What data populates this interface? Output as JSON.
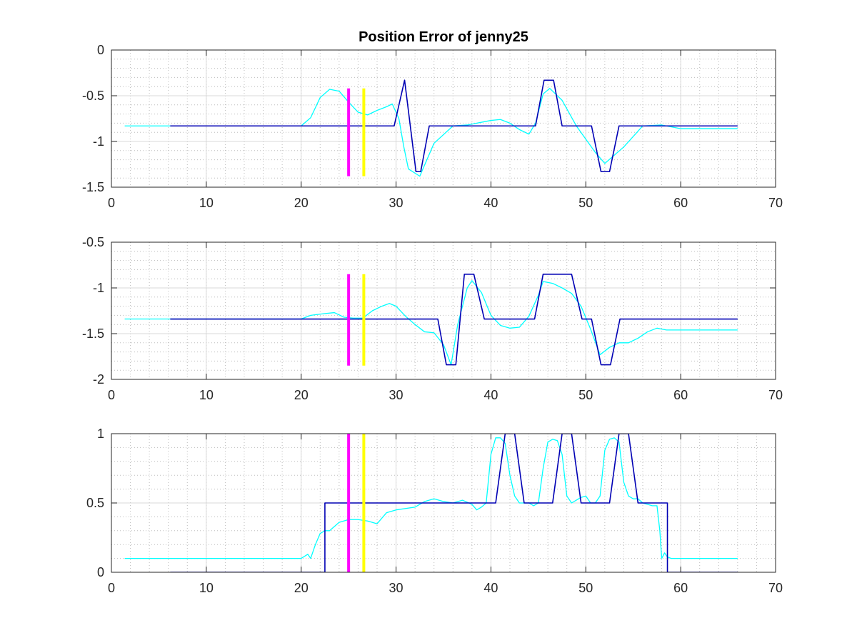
{
  "figure_title": "Position Error of jenny25",
  "colors": {
    "reference": "#0000b4",
    "measured": "#00ffff",
    "marker_1": "#ff00ff",
    "marker_2": "#ffff00",
    "axes": "#262626",
    "grid": "#d9d9d9",
    "minor_grid": "#bdbdbd"
  },
  "chart_data": [
    {
      "type": "line",
      "title": "Position Error of jenny25",
      "xlim": [
        0,
        70
      ],
      "ylim": [
        -1.5,
        0
      ],
      "x_ticks": [
        0,
        10,
        20,
        30,
        40,
        50,
        60,
        70
      ],
      "y_ticks": [
        -1.5,
        -1,
        -0.5,
        0
      ],
      "grid": "major and minor",
      "vertical_markers": [
        {
          "x": 25.0,
          "y_range": [
            -1.38,
            -0.42
          ],
          "color": "#ff00ff"
        },
        {
          "x": 26.6,
          "y_range": [
            -1.38,
            -0.42
          ],
          "color": "#ffff00"
        }
      ],
      "series": [
        {
          "color": "#0000b4",
          "x": [
            6.2,
            29.8,
            30.9,
            32.1,
            32.6,
            33.5,
            44.7,
            45.6,
            46.6,
            47.5,
            50.6,
            51.6,
            52.5,
            53.5,
            66.0
          ],
          "y": [
            -0.83,
            -0.83,
            -0.33,
            -1.33,
            -1.33,
            -0.83,
            -0.83,
            -0.33,
            -0.33,
            -0.83,
            -0.83,
            -1.33,
            -1.33,
            -0.83,
            -0.83
          ]
        },
        {
          "color": "#00ffff",
          "x": [
            1.4,
            6.0,
            20.0,
            21.0,
            22.0,
            23.0,
            24.0,
            25.0,
            26.0,
            27.0,
            28.0,
            29.0,
            29.6,
            30.3,
            30.8,
            31.3,
            32.5,
            34.0,
            36.0,
            37.5,
            40.0,
            41.0,
            42.0,
            43.0,
            44.0,
            44.7,
            45.5,
            46.2,
            47.5,
            49.0,
            51.0,
            52.0,
            54.0,
            56.0,
            58.0,
            60.0,
            66.0
          ],
          "y": [
            -0.83,
            -0.83,
            -0.83,
            -0.74,
            -0.52,
            -0.43,
            -0.45,
            -0.57,
            -0.68,
            -0.71,
            -0.66,
            -0.62,
            -0.59,
            -0.75,
            -1.05,
            -1.3,
            -1.38,
            -1.02,
            -0.83,
            -0.82,
            -0.77,
            -0.76,
            -0.8,
            -0.87,
            -0.92,
            -0.8,
            -0.48,
            -0.42,
            -0.55,
            -0.83,
            -1.12,
            -1.24,
            -1.06,
            -0.83,
            -0.82,
            -0.86,
            -0.86
          ]
        }
      ]
    },
    {
      "type": "line",
      "xlim": [
        0,
        70
      ],
      "ylim": [
        -2,
        -0.5
      ],
      "x_ticks": [
        0,
        10,
        20,
        30,
        40,
        50,
        60,
        70
      ],
      "y_ticks": [
        -2,
        -1.5,
        -1,
        -0.5
      ],
      "grid": "major and minor",
      "vertical_markers": [
        {
          "x": 25.0,
          "y_range": [
            -1.85,
            -0.85
          ],
          "color": "#ff00ff"
        },
        {
          "x": 26.6,
          "y_range": [
            -1.85,
            -0.85
          ],
          "color": "#ffff00"
        }
      ],
      "series": [
        {
          "color": "#0000b4",
          "x": [
            6.2,
            34.4,
            35.3,
            36.3,
            37.2,
            38.2,
            39.3,
            44.6,
            45.5,
            48.5,
            49.6,
            50.6,
            51.6,
            52.6,
            53.6,
            66.0
          ],
          "y": [
            -1.34,
            -1.34,
            -1.84,
            -1.84,
            -0.85,
            -0.85,
            -1.34,
            -1.34,
            -0.85,
            -0.85,
            -1.34,
            -1.34,
            -1.84,
            -1.84,
            -1.34,
            -1.34
          ]
        },
        {
          "color": "#00ffff",
          "x": [
            1.4,
            6.0,
            20.0,
            21.0,
            22.5,
            23.5,
            24.5,
            25.5,
            26.5,
            27.5,
            28.5,
            29.3,
            30.0,
            31.0,
            32.0,
            33.0,
            34.0,
            35.0,
            35.8,
            36.5,
            37.5,
            38.0,
            39.0,
            40.0,
            41.0,
            42.0,
            43.0,
            44.0,
            45.0,
            45.5,
            46.5,
            47.5,
            48.5,
            49.5,
            50.5,
            51.5,
            52.5,
            53.5,
            54.5,
            55.5,
            56.5,
            57.5,
            58.0,
            58.5,
            66.0
          ],
          "y": [
            -1.34,
            -1.34,
            -1.34,
            -1.3,
            -1.28,
            -1.27,
            -1.32,
            -1.33,
            -1.33,
            -1.25,
            -1.2,
            -1.17,
            -1.2,
            -1.31,
            -1.4,
            -1.48,
            -1.49,
            -1.62,
            -1.84,
            -1.4,
            -1.0,
            -0.92,
            -1.05,
            -1.3,
            -1.41,
            -1.44,
            -1.43,
            -1.31,
            -1.08,
            -0.93,
            -0.95,
            -1.0,
            -1.06,
            -1.2,
            -1.45,
            -1.73,
            -1.65,
            -1.6,
            -1.6,
            -1.55,
            -1.48,
            -1.44,
            -1.45,
            -1.46,
            -1.46
          ]
        }
      ]
    },
    {
      "type": "line",
      "xlim": [
        0,
        70
      ],
      "ylim": [
        0,
        1
      ],
      "x_ticks": [
        0,
        10,
        20,
        30,
        40,
        50,
        60,
        70
      ],
      "y_ticks": [
        0,
        0.5,
        1
      ],
      "grid": "major and minor",
      "vertical_markers": [
        {
          "x": 25.0,
          "y_range": [
            0,
            1
          ],
          "color": "#ff00ff"
        },
        {
          "x": 26.6,
          "y_range": [
            0,
            1
          ],
          "color": "#ffff00"
        }
      ],
      "series": [
        {
          "color": "#0000b4",
          "x": [
            6.2,
            22.5,
            22.5,
            40.5,
            41.5,
            42.5,
            43.5,
            46.5,
            47.5,
            48.5,
            49.5,
            52.5,
            53.5,
            54.5,
            55.5,
            58.6,
            58.6,
            66.0
          ],
          "y": [
            0,
            0,
            0.5,
            0.5,
            1.0,
            1.0,
            0.5,
            0.5,
            1.0,
            1.0,
            0.5,
            0.5,
            1.0,
            1.0,
            0.5,
            0.5,
            0,
            0
          ]
        },
        {
          "color": "#00ffff",
          "x": [
            1.4,
            10.0,
            20.0,
            20.7,
            21.0,
            21.5,
            22.0,
            22.5,
            23.0,
            24.0,
            25.0,
            26.0,
            27.0,
            28.0,
            29.0,
            30.0,
            31.0,
            32.0,
            33.0,
            34.0,
            35.0,
            36.0,
            37.0,
            38.0,
            38.5,
            39.0,
            39.5,
            40.0,
            40.5,
            41.0,
            41.5,
            42.0,
            42.5,
            43.0,
            43.5,
            44.0,
            44.5,
            45.0,
            45.5,
            46.0,
            46.5,
            47.0,
            47.5,
            48.0,
            48.5,
            49.0,
            49.5,
            50.0,
            50.5,
            51.0,
            51.5,
            52.0,
            52.5,
            53.0,
            53.5,
            54.0,
            54.5,
            55.0,
            55.5,
            56.0,
            57.0,
            57.5,
            57.8,
            58.0,
            58.3,
            58.6,
            59.0,
            66.0
          ],
          "y": [
            0.1,
            0.1,
            0.1,
            0.13,
            0.1,
            0.2,
            0.28,
            0.3,
            0.3,
            0.36,
            0.38,
            0.38,
            0.37,
            0.35,
            0.43,
            0.45,
            0.46,
            0.47,
            0.51,
            0.53,
            0.51,
            0.5,
            0.52,
            0.49,
            0.45,
            0.47,
            0.5,
            0.85,
            0.97,
            0.97,
            0.93,
            0.7,
            0.55,
            0.5,
            0.5,
            0.5,
            0.48,
            0.5,
            0.75,
            0.94,
            0.96,
            0.95,
            0.85,
            0.55,
            0.5,
            0.52,
            0.54,
            0.55,
            0.5,
            0.5,
            0.55,
            0.88,
            0.96,
            0.97,
            0.94,
            0.65,
            0.55,
            0.53,
            0.53,
            0.5,
            0.48,
            0.48,
            0.3,
            0.1,
            0.14,
            0.11,
            0.1,
            0.1
          ]
        }
      ]
    }
  ]
}
